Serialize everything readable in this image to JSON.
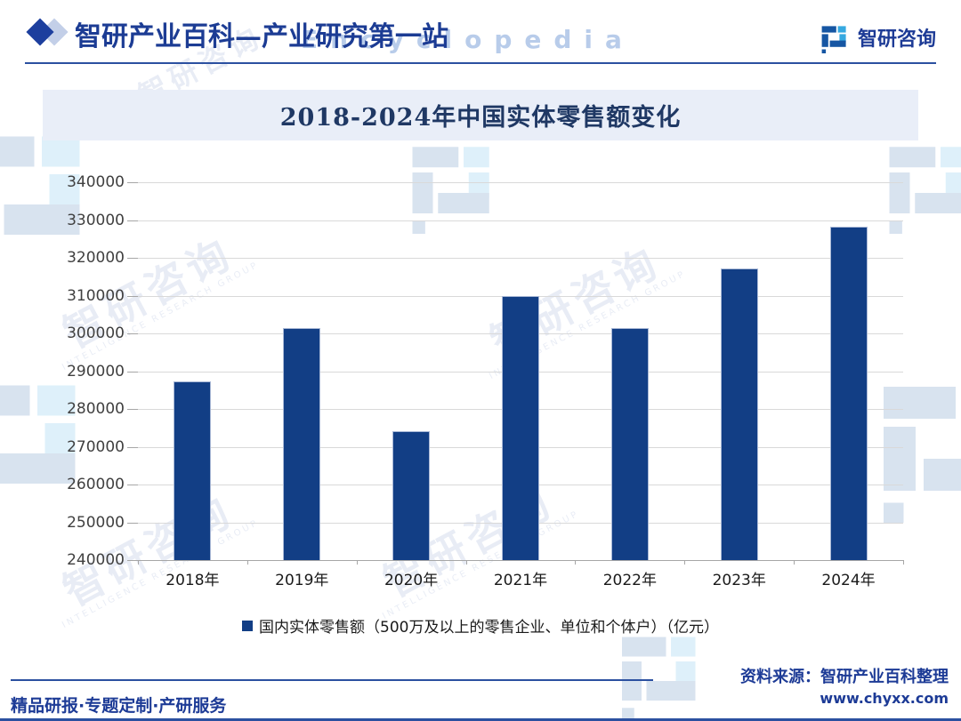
{
  "header": {
    "title": "智研产业百科—产业研究第一站",
    "brand": "智研咨询"
  },
  "chart_data": {
    "type": "bar",
    "title": "2018-2024年中国实体零售额变化",
    "categories": [
      "2018年",
      "2019年",
      "2020年",
      "2021年",
      "2022年",
      "2023年",
      "2024年"
    ],
    "values": [
      287400,
      301400,
      274200,
      309800,
      301500,
      317100,
      328300
    ],
    "unit": "亿元",
    "xlabel": "",
    "ylabel": "",
    "ylim": [
      240000,
      340000
    ],
    "ytick_step": 10000,
    "grid": true,
    "legend": [
      "国内实体零售额（500万及以上的零售企业、单位和个体户）（亿元）"
    ],
    "legend_position": "bottom",
    "bar_color": "#123e85"
  },
  "footer": {
    "services": "精品研报·专题定制·产研服务",
    "source": "资料来源：智研产业百科整理",
    "website": "www.chyxx.com"
  },
  "watermark": {
    "text": "智研咨询",
    "subtitle": "INTELLIGENCE RESEARCH GROUP",
    "latin": "Encyclopedia"
  },
  "colors": {
    "accent": "#1d3b96",
    "rule": "#2b50a0",
    "title_band": "#e9eef8",
    "bar": "#123e85"
  }
}
